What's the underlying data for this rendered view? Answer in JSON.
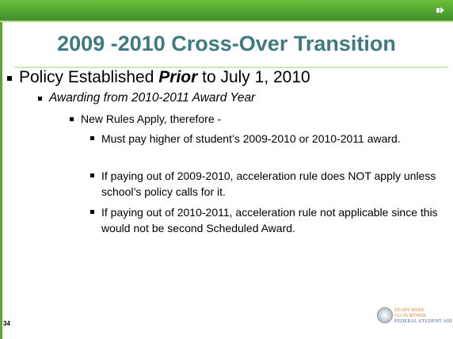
{
  "header": {
    "title": "2009 -2010 Cross-Over Transition"
  },
  "bullets": [
    {
      "parts": [
        "Policy Established ",
        "Prior",
        " to July 1, 2010"
      ]
    },
    {
      "text": "Awarding from 2010-2011 Award Year"
    },
    {
      "text": "New Rules Apply, therefore -"
    },
    {
      "text": "Must pay higher of student’s 2009-2010 or 2010-2011 award."
    },
    {
      "text": "If paying out of 2009-2010, acceleration rule does NOT apply unless school’s policy calls for it."
    },
    {
      "text": "If paying out of 2010-2011, acceleration rule not applicable since this would not be second Scheduled Award."
    }
  ],
  "footer": {
    "page_number": "34",
    "logo": [
      "START HERE",
      "GO FURTHER",
      "FEDERAL STUDENT AID"
    ]
  }
}
